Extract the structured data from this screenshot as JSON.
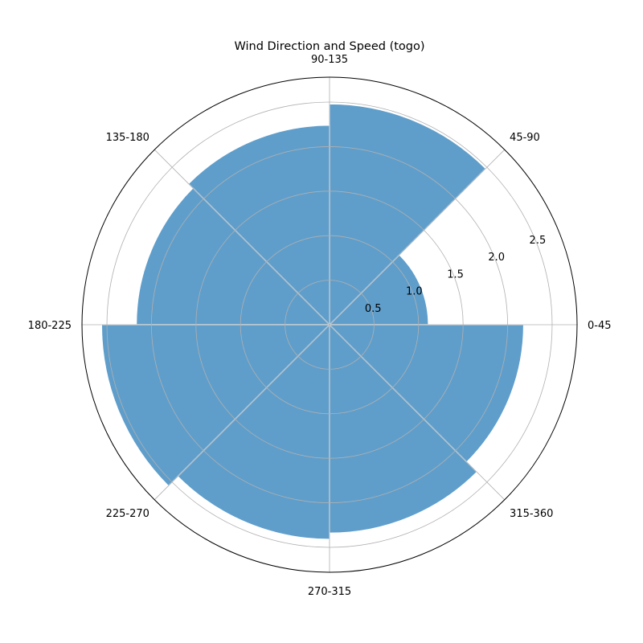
{
  "chart_data": {
    "type": "polar-bar",
    "title": "Wind Direction and Speed (togo)",
    "categories": [
      "0-45",
      "45-90",
      "90-135",
      "135-180",
      "180-225",
      "225-270",
      "270-315",
      "315-360"
    ],
    "values": [
      1.11,
      2.48,
      2.24,
      2.17,
      2.56,
      2.41,
      2.34,
      2.18
    ],
    "rlim": [
      0,
      2.78
    ],
    "rticks": [
      0.5,
      1.0,
      1.5,
      2.0,
      2.5
    ],
    "rtick_labels": [
      "0.5",
      "1.0",
      "1.5",
      "2.0",
      "2.5"
    ],
    "grid": true,
    "bar_color": "#5f9ecb",
    "edge_color": "#ffffff"
  }
}
